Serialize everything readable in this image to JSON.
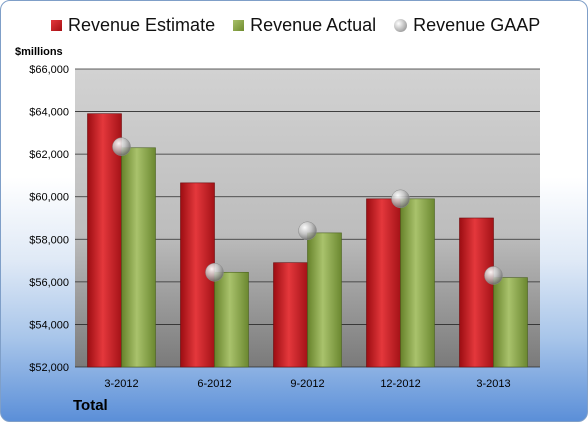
{
  "chart_data": {
    "type": "bar",
    "ylabel": "$millions",
    "footer_label": "Total",
    "ylim": [
      52000,
      66000
    ],
    "yticks": [
      "$52,000",
      "$54,000",
      "$56,000",
      "$58,000",
      "$60,000",
      "$62,000",
      "$64,000",
      "$66,000"
    ],
    "ytick_values": [
      52000,
      54000,
      56000,
      58000,
      60000,
      62000,
      64000,
      66000
    ],
    "categories": [
      "3-2012",
      "6-2012",
      "9-2012",
      "12-2012",
      "3-2013"
    ],
    "series": [
      {
        "name": "Revenue Estimate",
        "kind": "bar",
        "color": "#c41a1e",
        "values": [
          63900,
          60650,
          56900,
          59900,
          59000
        ]
      },
      {
        "name": "Revenue Actual",
        "kind": "bar",
        "color": "#8aa64a",
        "values": [
          62300,
          56450,
          58300,
          59900,
          56200
        ]
      },
      {
        "name": "Revenue GAAP",
        "kind": "marker",
        "color": "#b9b9b9",
        "values": [
          62350,
          56450,
          58400,
          59900,
          56300
        ]
      }
    ],
    "grid": true,
    "legend_position": "top"
  }
}
